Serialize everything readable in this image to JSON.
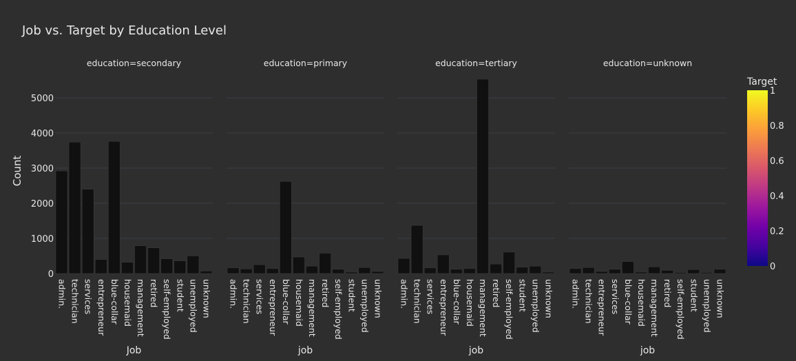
{
  "chart_data": {
    "type": "bar",
    "title": "Job vs. Target by Education Level",
    "ylabel": "Count",
    "ylim": [
      0,
      5800
    ],
    "yticks": [
      0,
      1000,
      2000,
      3000,
      4000,
      5000
    ],
    "grid": true,
    "bar_color": "#101010",
    "colorbar": {
      "title": "Target",
      "ticks": [
        "0",
        "0.2",
        "0.4",
        "0.6",
        "0.8",
        "1"
      ],
      "colors": [
        "#0d0887",
        "#46039f",
        "#7201a8",
        "#9c179e",
        "#bd3786",
        "#d8576b",
        "#ed7953",
        "#fb9f3a",
        "#fdca26",
        "#f0f921"
      ]
    },
    "panels": [
      {
        "name": "education=secondary",
        "xlabel": "Job",
        "categories": [
          "admin.",
          "technician",
          "services",
          "entrepreneur",
          "blue-collar",
          "housemaid",
          "management",
          "retired",
          "self-employed",
          "student",
          "unemployed",
          "unknown"
        ],
        "values": [
          2920,
          3740,
          2400,
          400,
          3760,
          320,
          790,
          730,
          420,
          360,
          500,
          70
        ]
      },
      {
        "name": "education=primary",
        "xlabel": "job",
        "categories": [
          "admin.",
          "technician",
          "services",
          "entrepreneur",
          "blue-collar",
          "housemaid",
          "management",
          "retired",
          "self-employed",
          "student",
          "unemployed",
          "unknown"
        ],
        "values": [
          160,
          130,
          250,
          140,
          2620,
          470,
          210,
          580,
          120,
          40,
          170,
          60
        ]
      },
      {
        "name": "education=tertiary",
        "xlabel": "job",
        "categories": [
          "admin.",
          "technician",
          "services",
          "entrepreneur",
          "blue-collar",
          "housemaid",
          "management",
          "retired",
          "self-employed",
          "student",
          "unemployed",
          "unknown"
        ],
        "values": [
          430,
          1370,
          160,
          530,
          120,
          140,
          5530,
          270,
          610,
          180,
          210,
          40
        ]
      },
      {
        "name": "education=unknown",
        "xlabel": "job",
        "categories": [
          "admin.",
          "technician",
          "entrepreneur",
          "services",
          "blue-collar",
          "housemaid",
          "management",
          "retired",
          "self-employed",
          "student",
          "unemployed",
          "unknown"
        ],
        "values": [
          140,
          170,
          60,
          120,
          340,
          40,
          190,
          90,
          30,
          110,
          30,
          120
        ]
      }
    ]
  }
}
